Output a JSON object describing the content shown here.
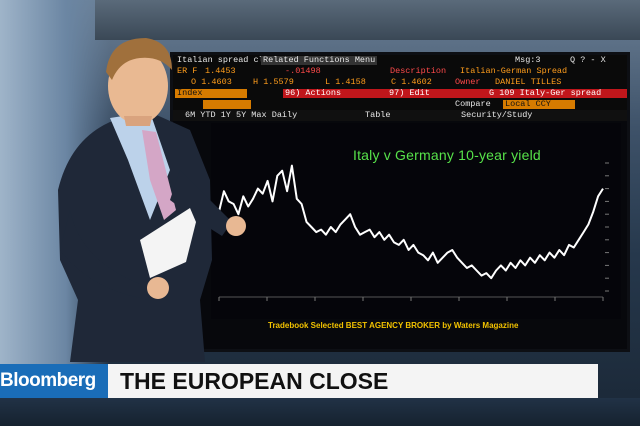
{
  "terminal": {
    "row1": {
      "menu": "Italian spread close",
      "menu2": "Related Functions Menu",
      "msg": "Msg:3",
      "icons": "Q ? - X"
    },
    "row2": {
      "field": "ER F",
      "value": "1.4453",
      "change": "-.01498",
      "desc_label": "Description",
      "desc_value": "Italian-German Spread"
    },
    "row3": {
      "o": "O 1.4603",
      "h": "H 1.5579",
      "l": "L 1.4158",
      "c": "C 1.4602",
      "owner_label": "Owner",
      "owner_value": "DANIEL TILLES"
    },
    "row4": {
      "index": "Index",
      "actions": "96) Actions",
      "edit": "97) Edit",
      "spread": "G 109 Italy-Ger spread"
    },
    "row5": {
      "range": "",
      "compare": "Compare",
      "local": "Local CCY"
    },
    "row6": {
      "periods": "6M  YTD  1Y  5Y  Max  Daily",
      "table": "Table",
      "security": "Security/Study"
    }
  },
  "chart_data": {
    "type": "line",
    "title": "Italy v Germany 10-year yield",
    "xlabel": "",
    "ylabel": "",
    "x": [
      0,
      1,
      2,
      3,
      4,
      5,
      6,
      7,
      8,
      9,
      10,
      11,
      12,
      13,
      14,
      15,
      16,
      17,
      18,
      19,
      20,
      21,
      22,
      23,
      24,
      25,
      26,
      27,
      28,
      29,
      30,
      31,
      32,
      33,
      34,
      35,
      36,
      37,
      38,
      39,
      40,
      41,
      42,
      43,
      44,
      45,
      46,
      47,
      48,
      49,
      50,
      51,
      52,
      53,
      54,
      55,
      56,
      57,
      58,
      59,
      60,
      61,
      62,
      63,
      64,
      65,
      66,
      67,
      68,
      69,
      70,
      71,
      72,
      73,
      74,
      75,
      76,
      77,
      78,
      79
    ],
    "values": [
      0.62,
      0.78,
      0.7,
      0.68,
      0.6,
      0.74,
      0.66,
      0.72,
      0.8,
      0.76,
      0.86,
      0.7,
      0.9,
      0.94,
      0.78,
      0.98,
      0.72,
      0.68,
      0.54,
      0.5,
      0.46,
      0.48,
      0.44,
      0.5,
      0.46,
      0.52,
      0.56,
      0.6,
      0.5,
      0.44,
      0.46,
      0.48,
      0.42,
      0.46,
      0.4,
      0.44,
      0.38,
      0.36,
      0.4,
      0.32,
      0.36,
      0.3,
      0.28,
      0.24,
      0.3,
      0.22,
      0.26,
      0.3,
      0.32,
      0.26,
      0.22,
      0.18,
      0.2,
      0.16,
      0.12,
      0.14,
      0.1,
      0.16,
      0.2,
      0.16,
      0.22,
      0.18,
      0.24,
      0.2,
      0.26,
      0.22,
      0.28,
      0.24,
      0.3,
      0.26,
      0.32,
      0.28,
      0.36,
      0.34,
      0.4,
      0.46,
      0.52,
      0.62,
      0.74,
      0.8
    ],
    "ylim": [
      0,
      1
    ],
    "line_color": "#ffffff"
  },
  "overlay": {
    "tradebook": "Tradebook Selected BEST AGENCY BROKER by Waters Magazine",
    "brand": "Bloomberg",
    "headline": "THE EUROPEAN CLOSE"
  },
  "colors": {
    "brand_blue": "#1a6db8",
    "headline_bg": "#f4f4f4",
    "terminal_orange": "#ff9d1c",
    "terminal_red": "#c0161b",
    "chart_title_green": "#57e24a",
    "tradebook_yellow": "#f2c200"
  }
}
